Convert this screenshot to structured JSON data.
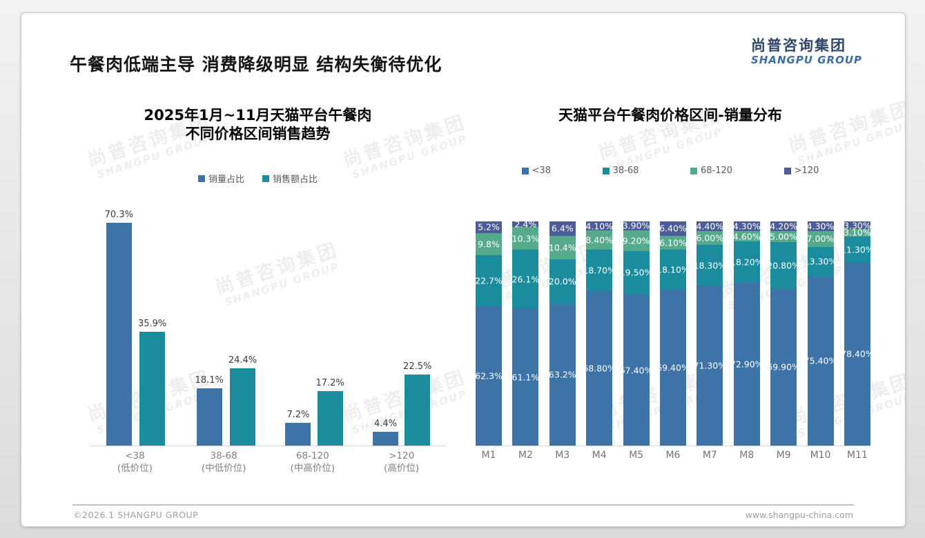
{
  "page": {
    "title": "午餐肉低端主导 消费降级明显 结构失衡待优化",
    "logo": {
      "cn": "尚普咨询集团",
      "en": "SHANGPU GROUP"
    },
    "footer": {
      "left": "©2026.1 SHANGPU GROUP",
      "right": "www.shangpu-china.com"
    },
    "watermark": {
      "cn": "尚普咨询集团",
      "en": "SHANGPU GROUP"
    }
  },
  "colors": {
    "blue": "#3d73a6",
    "teal": "#1b8b9e",
    "green": "#55aa8c",
    "slate": "#4c5c96",
    "axis_line": "#d6d6d6",
    "label_dark": "#3a3a3a",
    "label_white": "#ffffff"
  },
  "chart_data": [
    {
      "type": "bar",
      "title_line1": "2025年1月~11月天猫平台午餐肉",
      "title_line2": "不同价格区间销售趋势",
      "categories": [
        {
          "range": "<38",
          "tier": "(低价位)"
        },
        {
          "range": "38-68",
          "tier": "(中低价位)"
        },
        {
          "range": "68-120",
          "tier": "(中高价位)"
        },
        {
          "range": ">120",
          "tier": "(高价位)"
        }
      ],
      "series": [
        {
          "name": "销量占比",
          "color": "blue",
          "values": [
            70.3,
            18.1,
            7.2,
            4.4
          ],
          "labels": [
            "70.3%",
            "18.1%",
            "7.2%",
            "4.4%"
          ]
        },
        {
          "name": "销售额占比",
          "color": "teal",
          "values": [
            35.9,
            24.4,
            17.2,
            22.5
          ],
          "labels": [
            "35.9%",
            "24.4%",
            "17.2%",
            "22.5%"
          ]
        }
      ],
      "ylabel": "",
      "xlabel": "",
      "grid": false,
      "legend_position": "top"
    },
    {
      "type": "stacked-bar-100",
      "title": "天猫平台午餐肉价格区间-销量分布",
      "categories": [
        "M1",
        "M2",
        "M3",
        "M4",
        "M5",
        "M6",
        "M7",
        "M8",
        "M9",
        "M10",
        "M11"
      ],
      "series": [
        {
          "name": "<38",
          "color": "blue",
          "values": [
            62.3,
            61.1,
            63.2,
            68.8,
            67.4,
            69.4,
            71.3,
            72.9,
            69.9,
            75.4,
            78.4
          ],
          "labels": [
            "62.3%",
            "61.1%",
            "63.2%",
            "68.80%",
            "67.40%",
            "69.40%",
            "71.30%",
            "72.90%",
            "69.90%",
            "75.40%",
            "78.40%"
          ]
        },
        {
          "name": "38-68",
          "color": "teal",
          "values": [
            22.7,
            26.1,
            20.0,
            18.7,
            19.5,
            18.1,
            18.3,
            18.2,
            20.8,
            13.3,
            11.3
          ],
          "labels": [
            "22.7%",
            "26.1%",
            "20.0%",
            "18.70%",
            "19.50%",
            "18.10%",
            "18.30%",
            "18.20%",
            "20.80%",
            "13.30%",
            "11.30%"
          ]
        },
        {
          "name": "68-120",
          "color": "green",
          "values": [
            9.8,
            10.3,
            10.4,
            8.4,
            9.2,
            6.1,
            6.0,
            4.6,
            5.0,
            7.0,
            3.1
          ],
          "labels": [
            "9.8%",
            "10.3%",
            "10.4%",
            "8.40%",
            "9.20%",
            "6.10%",
            "6.00%",
            "4.60%",
            "5.00%",
            "7.00%",
            "3.10%"
          ]
        },
        {
          "name": ">120",
          "color": "slate",
          "values": [
            5.2,
            2.4,
            6.4,
            4.1,
            3.9,
            6.4,
            4.4,
            4.3,
            4.2,
            4.3,
            3.3
          ],
          "labels": [
            "5.2%",
            "2.4%",
            "6.4%",
            "4.10%",
            "3.90%",
            "6.40%",
            "4.40%",
            "4.30%",
            "4.20%",
            "4.30%",
            "3.30%"
          ]
        }
      ],
      "grid": false,
      "legend_position": "top"
    }
  ]
}
